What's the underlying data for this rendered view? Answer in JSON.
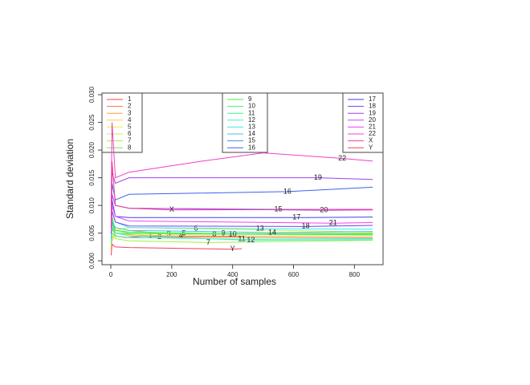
{
  "chart_data": {
    "type": "line",
    "x_label": "Number of samples",
    "y_label": "Standard deviation",
    "xlim": [
      -29,
      894
    ],
    "ylim": [
      -0.0007,
      0.0303
    ],
    "xticks": [
      0,
      200,
      400,
      600,
      800
    ],
    "yticks": [
      {
        "value": 0,
        "label": "0.000"
      },
      {
        "value": 0.005,
        "label": "0.005"
      },
      {
        "value": 0.01,
        "label": "0.010"
      },
      {
        "value": 0.015,
        "label": "0.015"
      },
      {
        "value": 0.02,
        "label": "0.020"
      },
      {
        "value": 0.025,
        "label": "0.025"
      },
      {
        "value": 0.03,
        "label": "0.030"
      }
    ],
    "series": [
      {
        "name": "1",
        "color": "#ff4040",
        "x": [
          1,
          4,
          15,
          50,
          130,
          430
        ],
        "values": [
          0.002,
          0.006,
          0.0045,
          0.0042,
          0.0045,
          0.0044
        ]
      },
      {
        "name": "2",
        "color": "#ff7040",
        "x": [
          1,
          4,
          15,
          50,
          160,
          860
        ],
        "values": [
          0.003,
          0.008,
          0.005,
          0.0048,
          0.0043,
          0.0042
        ]
      },
      {
        "name": "3",
        "color": "#ffa040",
        "x": [
          1,
          4,
          15,
          60,
          190,
          860
        ],
        "values": [
          0.004,
          0.007,
          0.006,
          0.0055,
          0.0048,
          0.005
        ]
      },
      {
        "name": "4",
        "color": "#ffcf40",
        "x": [
          1,
          4,
          15,
          60,
          230,
          860
        ],
        "values": [
          0.005,
          0.0035,
          0.005,
          0.0047,
          0.0045,
          0.0045
        ]
      },
      {
        "name": "5",
        "color": "#f0f040",
        "x": [
          1,
          4,
          15,
          60,
          240,
          860
        ],
        "values": [
          0.002,
          0.006,
          0.0055,
          0.005,
          0.0049,
          0.0049
        ]
      },
      {
        "name": "6",
        "color": "#c8f040",
        "x": [
          1,
          4,
          15,
          60,
          280,
          860
        ],
        "values": [
          0.006,
          0.004,
          0.0055,
          0.006,
          0.0058,
          0.0052
        ]
      },
      {
        "name": "7",
        "color": "#a0f040",
        "x": [
          1,
          4,
          15,
          60,
          320,
          860
        ],
        "values": [
          0.003,
          0.007,
          0.004,
          0.0036,
          0.0033,
          0.0037
        ]
      },
      {
        "name": "8",
        "color": "#70f040",
        "x": [
          1,
          4,
          15,
          60,
          340,
          860
        ],
        "values": [
          0.004,
          0.006,
          0.0055,
          0.005,
          0.0048,
          0.005
        ]
      },
      {
        "name": "9",
        "color": "#40f040",
        "x": [
          1,
          4,
          15,
          60,
          370,
          860
        ],
        "values": [
          0.005,
          0.008,
          0.0055,
          0.0052,
          0.0049,
          0.0048
        ]
      },
      {
        "name": "10",
        "color": "#40f070",
        "x": [
          1,
          4,
          15,
          60,
          400,
          860
        ],
        "values": [
          0.004,
          0.007,
          0.005,
          0.0049,
          0.0048,
          0.0047
        ]
      },
      {
        "name": "11",
        "color": "#40f0a0",
        "x": [
          1,
          4,
          15,
          60,
          430,
          860
        ],
        "values": [
          0.003,
          0.005,
          0.0045,
          0.0042,
          0.0039,
          0.004
        ]
      },
      {
        "name": "12",
        "color": "#40f0d0",
        "x": [
          1,
          4,
          15,
          60,
          460,
          860
        ],
        "values": [
          0.004,
          0.006,
          0.005,
          0.0045,
          0.0037,
          0.0038
        ]
      },
      {
        "name": "13",
        "color": "#40e8f0",
        "x": [
          1,
          4,
          15,
          60,
          490,
          860
        ],
        "values": [
          0.005,
          0.009,
          0.007,
          0.006,
          0.0058,
          0.0057
        ]
      },
      {
        "name": "14",
        "color": "#40c0f0",
        "x": [
          1,
          4,
          15,
          60,
          530,
          860
        ],
        "values": [
          0.004,
          0.007,
          0.006,
          0.0055,
          0.0051,
          0.0053
        ]
      },
      {
        "name": "15",
        "color": "#4090f0",
        "x": [
          1,
          4,
          15,
          60,
          550,
          860
        ],
        "values": [
          0.006,
          0.012,
          0.01,
          0.0095,
          0.0093,
          0.0093
        ]
      },
      {
        "name": "16",
        "color": "#4060f0",
        "x": [
          1,
          4,
          15,
          60,
          580,
          860
        ],
        "values": [
          0.007,
          0.014,
          0.011,
          0.012,
          0.0125,
          0.0133
        ]
      },
      {
        "name": "17",
        "color": "#4040f0",
        "x": [
          1,
          4,
          15,
          60,
          610,
          860
        ],
        "values": [
          0.005,
          0.011,
          0.008,
          0.0078,
          0.0078,
          0.0079
        ]
      },
      {
        "name": "18",
        "color": "#7040f0",
        "x": [
          1,
          4,
          15,
          60,
          640,
          860
        ],
        "values": [
          0.005,
          0.009,
          0.007,
          0.0063,
          0.0062,
          0.0064
        ]
      },
      {
        "name": "19",
        "color": "#a040f0",
        "x": [
          1,
          4,
          15,
          60,
          680,
          860
        ],
        "values": [
          0.008,
          0.016,
          0.014,
          0.015,
          0.015,
          0.0147
        ]
      },
      {
        "name": "20",
        "color": "#d040f0",
        "x": [
          1,
          4,
          15,
          60,
          700,
          860
        ],
        "values": [
          0.006,
          0.012,
          0.01,
          0.0095,
          0.0091,
          0.0092
        ]
      },
      {
        "name": "21",
        "color": "#f040f0",
        "x": [
          1,
          4,
          15,
          60,
          730,
          860
        ],
        "values": [
          0.005,
          0.01,
          0.008,
          0.0072,
          0.0068,
          0.0069
        ]
      },
      {
        "name": "22",
        "color": "#f040c8",
        "x": [
          1,
          4,
          15,
          60,
          300,
          500,
          760,
          860
        ],
        "values": [
          0.01,
          0.025,
          0.015,
          0.016,
          0.018,
          0.0195,
          0.0185,
          0.018
        ]
      },
      {
        "name": "X",
        "color": "#f04090",
        "x": [
          1,
          4,
          15,
          60,
          200,
          860
        ],
        "values": [
          0.006,
          0.018,
          0.01,
          0.0095,
          0.0092,
          0.0093
        ]
      },
      {
        "name": "Y",
        "color": "#f04060",
        "x": [
          1,
          4,
          15,
          60,
          400,
          430
        ],
        "values": [
          0.001,
          0.003,
          0.0025,
          0.0024,
          0.0021,
          0.0022
        ]
      }
    ]
  }
}
